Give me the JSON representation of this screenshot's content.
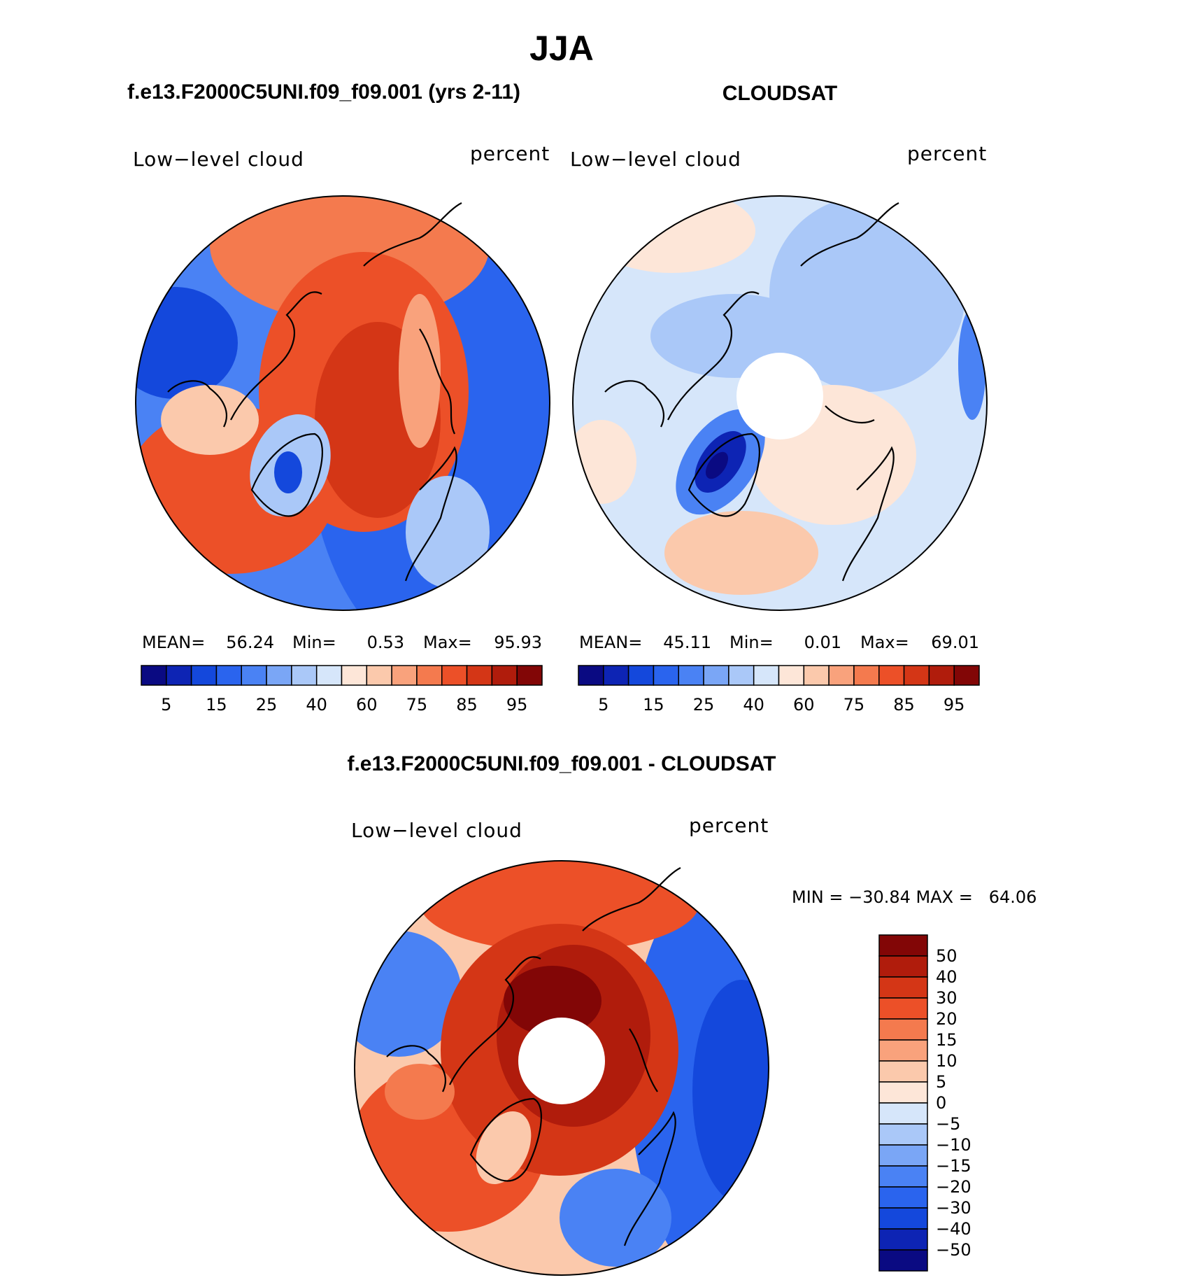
{
  "title": "JJA",
  "panels": {
    "model": {
      "heading": "f.e13.F2000C5UNI.f09_f09.001 (yrs 2-11)",
      "left_label": "Low−level cloud",
      "right_label": "percent",
      "mean_label": "MEAN=",
      "mean_value": "56.24",
      "min_label": "Min=",
      "min_value": "0.53",
      "max_label": "Max=",
      "max_value": "95.93",
      "colorbar_ticks": [
        "5",
        "15",
        "25",
        "40",
        "60",
        "75",
        "85",
        "95"
      ]
    },
    "obs": {
      "heading": "CLOUDSAT",
      "left_label": "Low−level cloud",
      "right_label": "percent",
      "mean_label": "MEAN=",
      "mean_value": "45.11",
      "min_label": "Min=",
      "min_value": "0.01",
      "max_label": "Max=",
      "max_value": "69.01",
      "colorbar_ticks": [
        "5",
        "15",
        "25",
        "40",
        "60",
        "75",
        "85",
        "95"
      ]
    },
    "diff": {
      "heading": "f.e13.F2000C5UNI.f09_f09.001 - CLOUDSAT",
      "left_label": "Low−level cloud",
      "right_label": "percent",
      "stats_line": "MIN = −30.84 MAX =   64.06",
      "colorbar_ticks": [
        "50",
        "40",
        "30",
        "20",
        "15",
        "10",
        "5",
        "0",
        "−5",
        "−10",
        "−15",
        "−20",
        "−30",
        "−40",
        "−50"
      ]
    }
  },
  "colors": {
    "abs_scale": [
      "#0a0a82",
      "#0d24b4",
      "#1448dc",
      "#2a64ee",
      "#4a82f4",
      "#7aa6f6",
      "#aac8f8",
      "#d6e6fa",
      "#fde6d8",
      "#fbc9ac",
      "#f9a27c",
      "#f47a4e",
      "#ec5028",
      "#d43616",
      "#b01c0c",
      "#820606"
    ],
    "diff_scale": [
      "#0a0a82",
      "#0d24b4",
      "#1448dc",
      "#2a64ee",
      "#4a82f4",
      "#7aa6f6",
      "#aac8f8",
      "#d6e6fa",
      "#fde6d8",
      "#fbc9ac",
      "#f9a27c",
      "#f47a4e",
      "#ec5028",
      "#d43616",
      "#b01c0c",
      "#820606"
    ]
  },
  "chart_data": [
    {
      "type": "heatmap",
      "title": "f.e13.F2000C5UNI.f09_f09.001 (yrs 2-11)",
      "variable": "Low−level cloud",
      "units": "percent",
      "projection": "north polar stereographic",
      "stats": {
        "mean": 56.24,
        "min": 0.53,
        "max": 95.93
      },
      "contour_levels": [
        5,
        10,
        15,
        20,
        25,
        30,
        40,
        50,
        60,
        65,
        75,
        80,
        85,
        90,
        95
      ]
    },
    {
      "type": "heatmap",
      "title": "CLOUDSAT",
      "variable": "Low−level cloud",
      "units": "percent",
      "projection": "north polar stereographic",
      "stats": {
        "mean": 45.11,
        "min": 0.01,
        "max": 69.01
      },
      "contour_levels": [
        5,
        10,
        15,
        20,
        25,
        30,
        40,
        50,
        60,
        65,
        75,
        80,
        85,
        90,
        95
      ]
    },
    {
      "type": "heatmap",
      "title": "f.e13.F2000C5UNI.f09_f09.001 - CLOUDSAT",
      "variable": "Low−level cloud",
      "units": "percent",
      "projection": "north polar stereographic",
      "stats": {
        "min": -30.84,
        "max": 64.06
      },
      "contour_levels": [
        -50,
        -40,
        -30,
        -20,
        -15,
        -10,
        -5,
        0,
        5,
        10,
        15,
        20,
        30,
        40,
        50
      ]
    }
  ]
}
